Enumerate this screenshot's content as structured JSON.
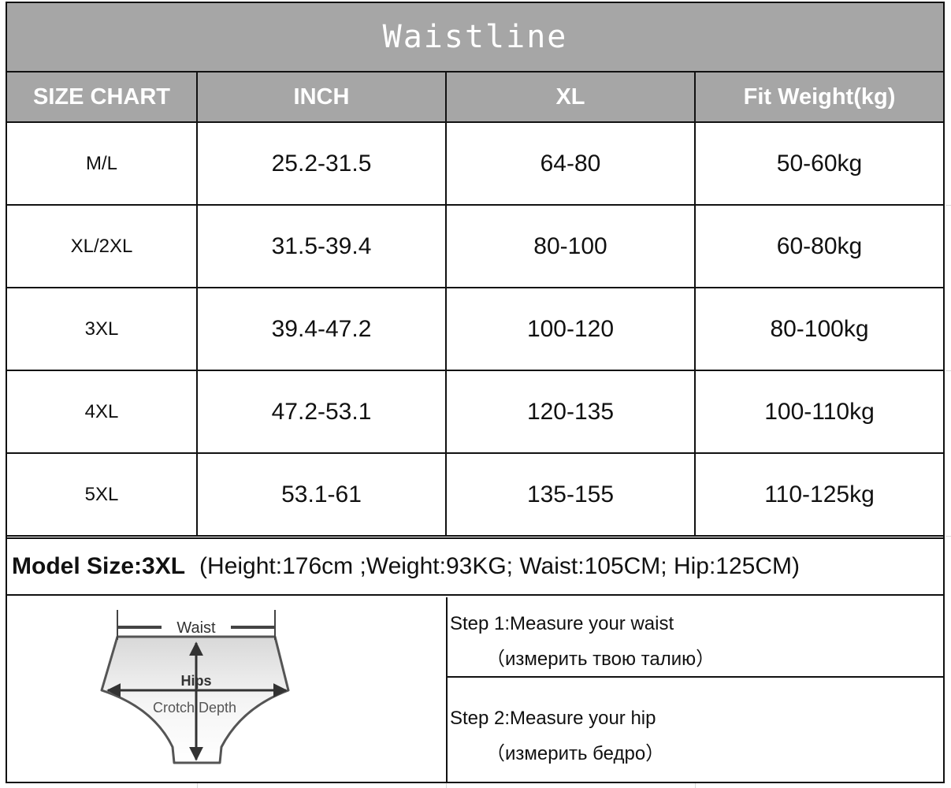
{
  "title": "Waistline",
  "table": {
    "headers": [
      "SIZE CHART",
      "INCH",
      "XL",
      "Fit Weight(kg)"
    ],
    "rows": [
      [
        "M/L",
        "25.2-31.5",
        "64-80",
        "50-60kg"
      ],
      [
        "XL/2XL",
        "31.5-39.4",
        "80-100",
        "60-80kg"
      ],
      [
        "3XL",
        "39.4-47.2",
        "100-120",
        "80-100kg"
      ],
      [
        "4XL",
        "47.2-53.1",
        "120-135",
        "100-110kg"
      ],
      [
        "5XL",
        "53.1-61",
        "135-155",
        "110-125kg"
      ]
    ]
  },
  "model": {
    "label": "Model Size:3XL",
    "details": "(Height:176cm ;Weight:93KG; Waist:105CM; Hip:125CM)"
  },
  "diagram": {
    "labels": {
      "waist": "Waist",
      "hips": "Hips",
      "crotch": "Crotch Depth"
    }
  },
  "steps": [
    {
      "text": "Step 1:Measure your waist",
      "ru": "（измерить твою талию）"
    },
    {
      "text": "Step 2:Measure your hip",
      "ru": "（измерить бедро）"
    }
  ],
  "colors": {
    "header_bg": "#a6a6a6",
    "header_text": "#ffffff",
    "border": "#111111"
  }
}
